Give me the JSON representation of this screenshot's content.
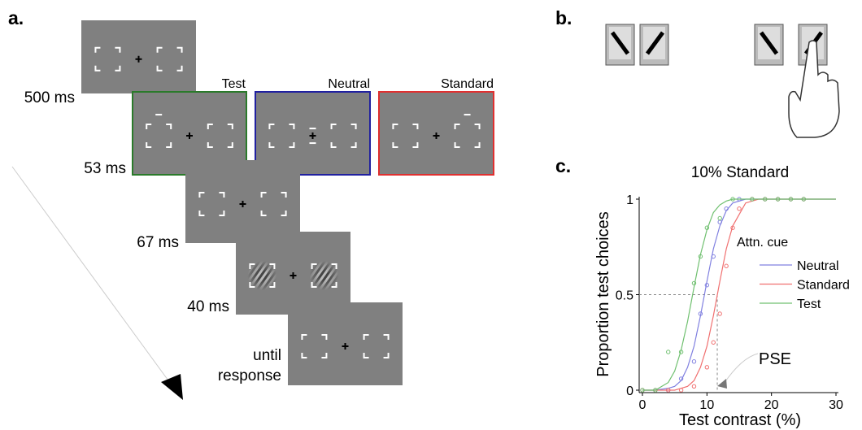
{
  "panel_labels": [
    "a.",
    "b.",
    "c."
  ],
  "timeline": {
    "durations": [
      "500 ms",
      "53 ms",
      "67 ms",
      "40 ms",
      "until response"
    ],
    "cue_labels": [
      "Test",
      "Neutral",
      "Standard"
    ]
  },
  "chart_data": {
    "type": "line",
    "title": "10% Standard",
    "xlabel": "Test contrast (%)",
    "ylabel": "Proportion test choices",
    "xlim": [
      0,
      30
    ],
    "xticks": [
      0,
      10,
      20,
      30
    ],
    "ylim": [
      0,
      1
    ],
    "yticks": [
      0,
      0.5,
      1
    ],
    "legend_title": "Attn. cue",
    "fit_x": [
      0,
      2,
      4,
      5,
      6,
      7,
      8,
      9,
      10,
      11,
      12,
      13,
      14,
      16,
      18,
      20,
      30
    ],
    "series": [
      {
        "name": "Neutral",
        "color": "#8080e0",
        "x": [
          0,
          2,
          4,
          6,
          8,
          9,
          10,
          11,
          12,
          13,
          15,
          17,
          19,
          21,
          23,
          25
        ],
        "values": [
          0,
          0,
          0,
          0.06,
          0.15,
          0.4,
          0.55,
          0.7,
          0.88,
          0.95,
          1,
          1,
          1,
          1,
          1,
          1
        ],
        "fit_values": [
          0,
          0,
          0.01,
          0.02,
          0.05,
          0.12,
          0.23,
          0.39,
          0.57,
          0.74,
          0.86,
          0.94,
          0.98,
          1,
          1,
          1,
          1
        ]
      },
      {
        "name": "Standard",
        "color": "#f07070",
        "x": [
          0,
          2,
          4,
          6,
          8,
          10,
          11,
          12,
          13,
          14,
          15,
          17,
          19,
          21,
          23,
          25
        ],
        "values": [
          0,
          0,
          0,
          0,
          0.02,
          0.12,
          0.25,
          0.4,
          0.65,
          0.85,
          0.95,
          1,
          1,
          1,
          1,
          1
        ],
        "fit_values": [
          0,
          0,
          0,
          0,
          0.01,
          0.02,
          0.05,
          0.12,
          0.23,
          0.39,
          0.57,
          0.74,
          0.86,
          0.98,
          1,
          1,
          1
        ]
      },
      {
        "name": "Test",
        "color": "#70c070",
        "x": [
          0,
          2,
          4,
          6,
          8,
          9,
          10,
          12,
          14,
          17,
          19,
          21,
          23,
          25
        ],
        "values": [
          0,
          0,
          0.2,
          0.2,
          0.56,
          0.7,
          0.85,
          0.9,
          1,
          1,
          1,
          1,
          1,
          1
        ],
        "fit_values": [
          0,
          0,
          0.04,
          0.1,
          0.21,
          0.36,
          0.54,
          0.71,
          0.84,
          0.93,
          0.97,
          0.99,
          1,
          1,
          1,
          1,
          1
        ]
      }
    ],
    "pse": {
      "label": "PSE",
      "x": 11.6,
      "y": 0.5
    }
  }
}
